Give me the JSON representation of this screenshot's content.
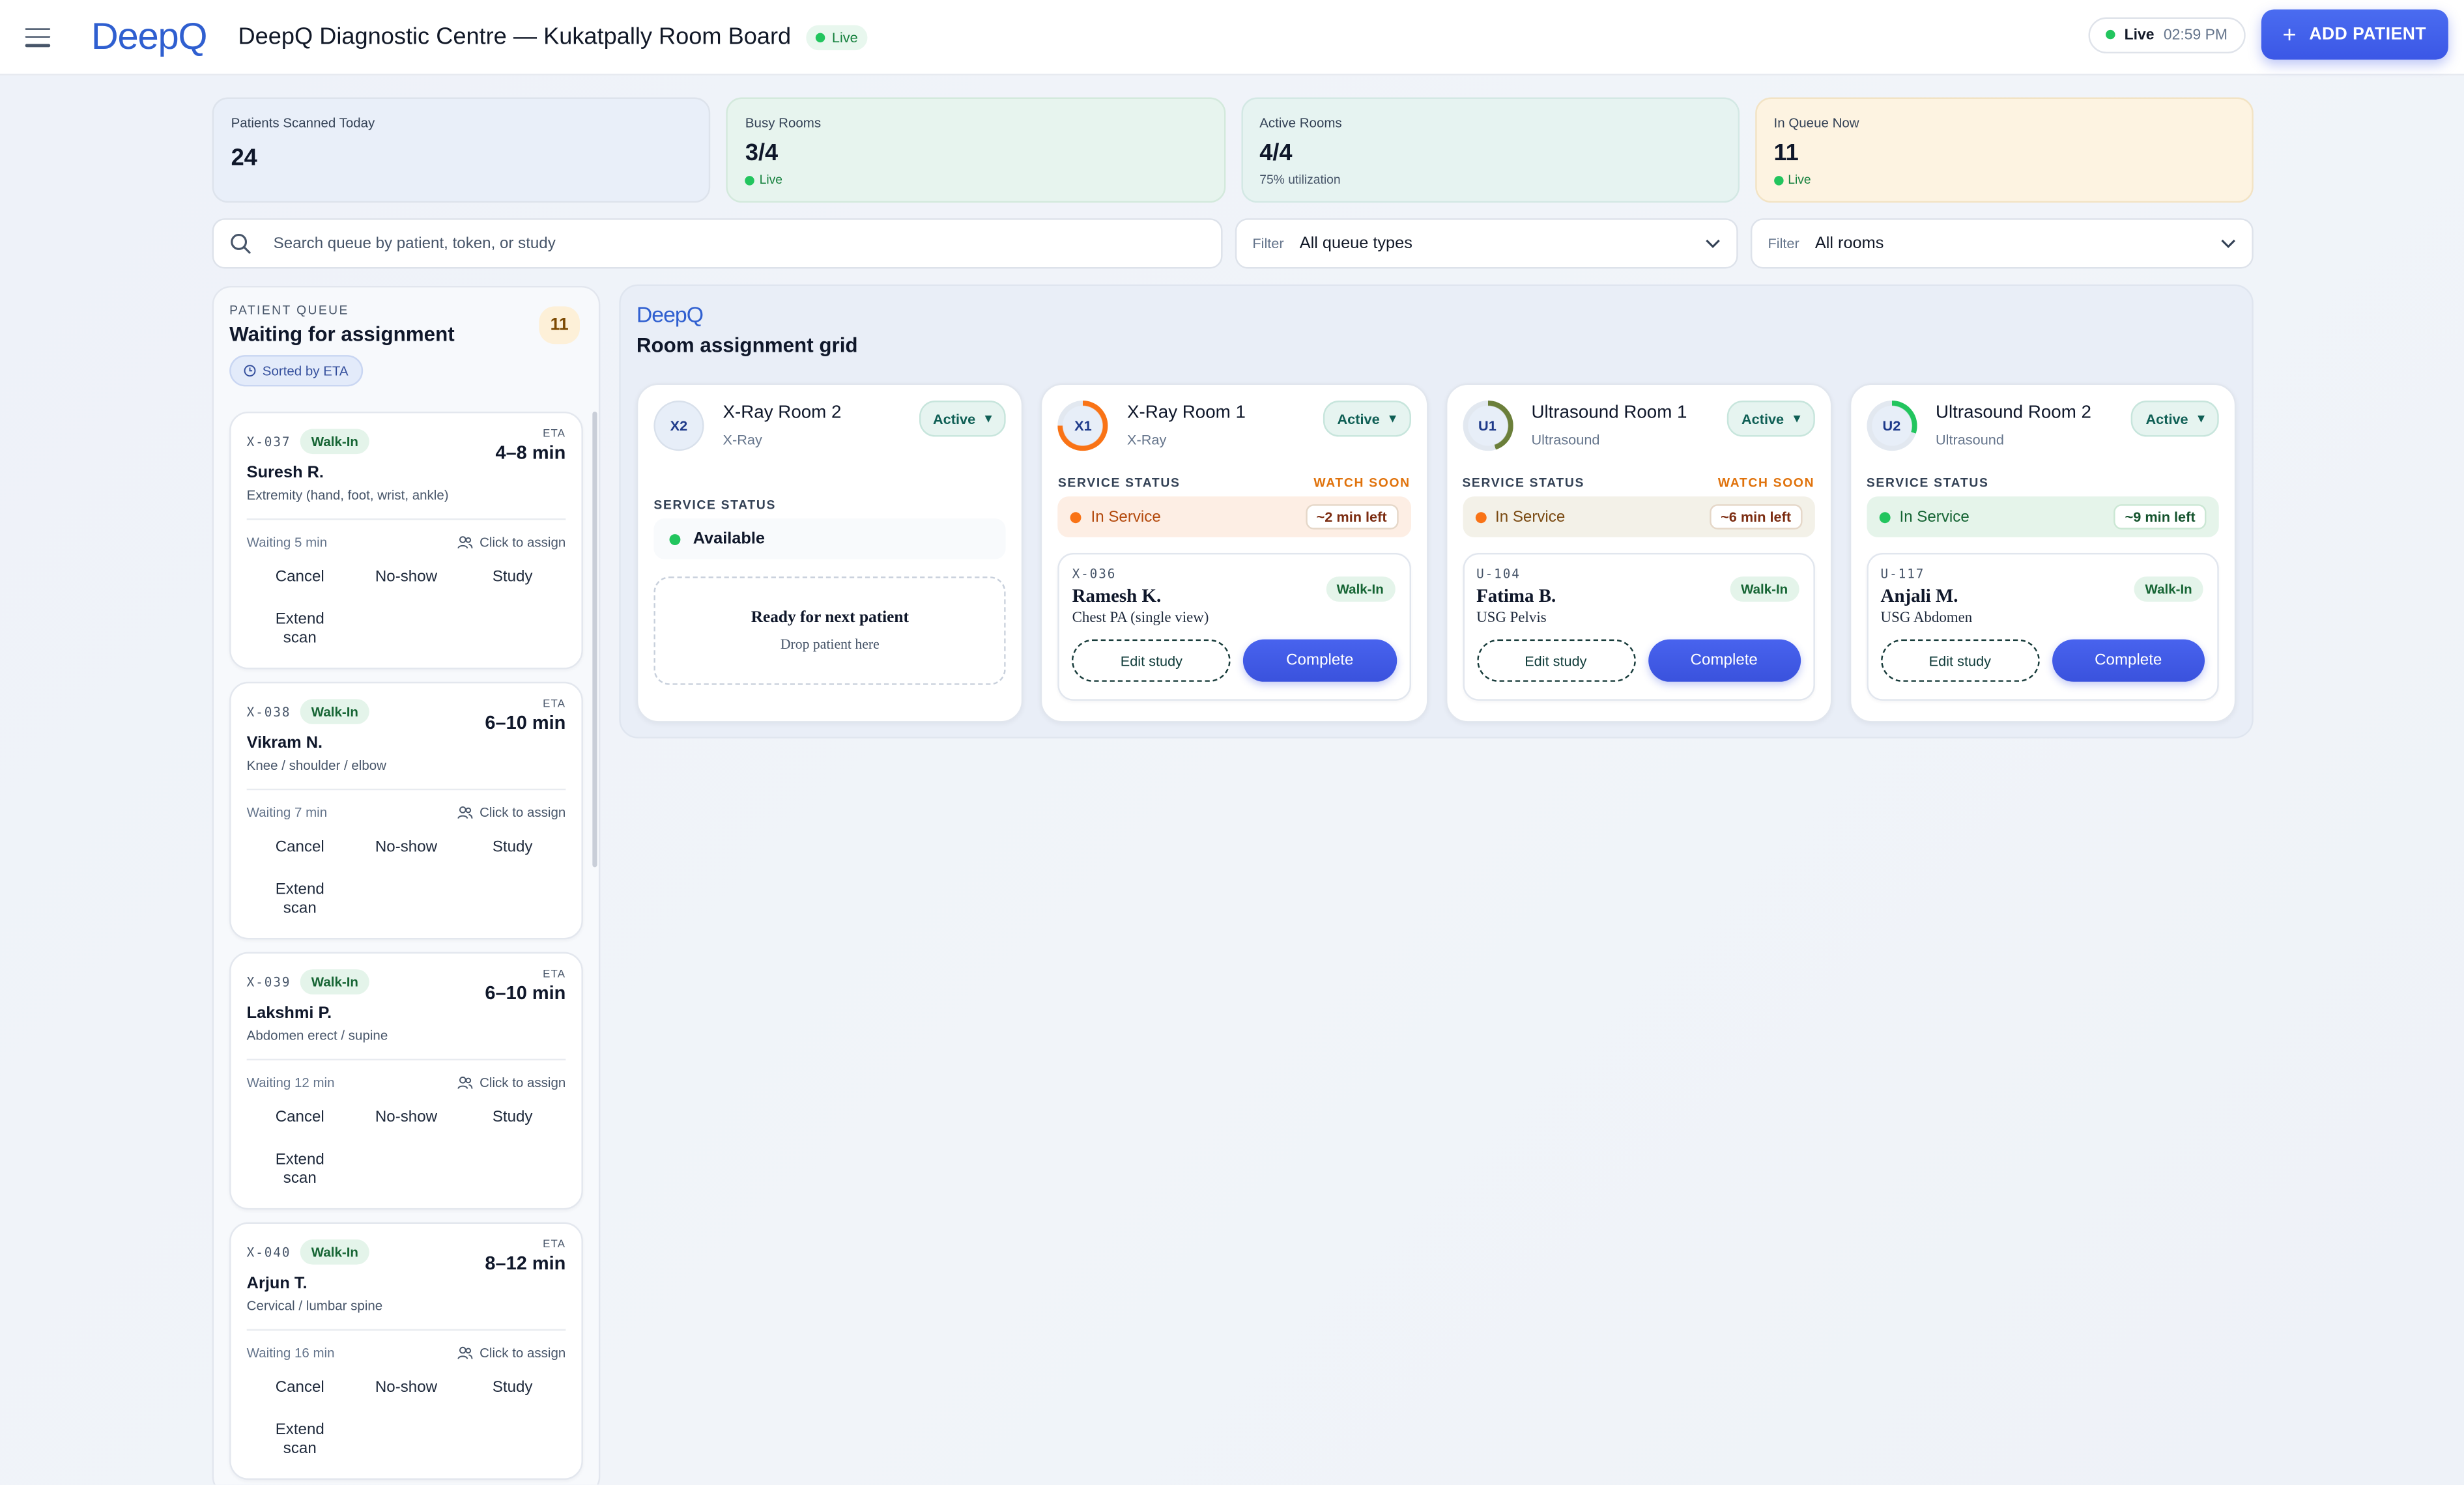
{
  "header": {
    "logo": "DeepQ",
    "title": "DeepQ Diagnostic Centre — Kukatpally Room Board",
    "live_pill": "Live",
    "clock_live": "Live",
    "clock_time": "02:59 PM",
    "add_button": "ADD PATIENT"
  },
  "stats": [
    {
      "label": "Patients Scanned Today",
      "value": "24",
      "sub": ""
    },
    {
      "label": "Busy Rooms",
      "value": "3/4",
      "sub": "Live"
    },
    {
      "label": "Active Rooms",
      "value": "4/4",
      "sub": "75% utilization"
    },
    {
      "label": "In Queue Now",
      "value": "11",
      "sub": "Live"
    }
  ],
  "search": {
    "placeholder": "Search queue by patient, token, or study"
  },
  "filters": [
    {
      "label": "Filter",
      "value": "All queue types"
    },
    {
      "label": "Filter",
      "value": "All rooms"
    }
  ],
  "queue": {
    "kicker": "PATIENT QUEUE",
    "title": "Waiting for assignment",
    "count": "11",
    "sorted": "Sorted by ETA",
    "eta_label": "ETA",
    "assign_label": "Click to assign",
    "actions": {
      "cancel": "Cancel",
      "noshow": "No-show",
      "study": "Study",
      "extend": "Extend scan"
    },
    "items": [
      {
        "token": "X-037",
        "type": "Walk-In",
        "eta": "4–8 min",
        "name": "Suresh R.",
        "study": "Extremity (hand, foot, wrist, ankle)",
        "waiting": "Waiting 5 min"
      },
      {
        "token": "X-038",
        "type": "Walk-In",
        "eta": "6–10 min",
        "name": "Vikram N.",
        "study": "Knee / shoulder / elbow",
        "waiting": "Waiting 7 min"
      },
      {
        "token": "X-039",
        "type": "Walk-In",
        "eta": "6–10 min",
        "name": "Lakshmi P.",
        "study": "Abdomen erect / supine",
        "waiting": "Waiting 12 min"
      },
      {
        "token": "X-040",
        "type": "Walk-In",
        "eta": "8–12 min",
        "name": "Arjun T.",
        "study": "Cervical / lumbar spine",
        "waiting": "Waiting 16 min"
      }
    ]
  },
  "grid": {
    "logo": "DeepQ",
    "title": "Room assignment grid",
    "service_status_label": "SERVICE STATUS",
    "rooms": [
      {
        "code": "X2",
        "name": "X-Ray Room 2",
        "type": "X-Ray",
        "status": "Active",
        "service": "Available",
        "watch": "",
        "time_left": "",
        "ready": "Ready for next patient",
        "drop": "Drop patient here",
        "ring_color": "#cbd5e1",
        "ring_pct": 0
      },
      {
        "code": "X1",
        "name": "X-Ray Room 1",
        "type": "X-Ray",
        "status": "Active",
        "service": "In Service",
        "watch": "WATCH SOON",
        "time_left": "~2 min left",
        "patient": {
          "token": "X-036",
          "name": "Ramesh K.",
          "study": "Chest PA (single view)",
          "type": "Walk-In"
        },
        "ring_color": "#f97316",
        "ring_pct": 0.75
      },
      {
        "code": "U1",
        "name": "Ultrasound Room 1",
        "type": "Ultrasound",
        "status": "Active",
        "service": "In Service",
        "watch": "WATCH SOON",
        "time_left": "~6 min left",
        "patient": {
          "token": "U-104",
          "name": "Fatima B.",
          "study": "USG Pelvis",
          "type": "Walk-In"
        },
        "ring_color": "#6b7f3a",
        "ring_pct": 0.45
      },
      {
        "code": "U2",
        "name": "Ultrasound Room 2",
        "type": "Ultrasound",
        "status": "Active",
        "service": "In Service",
        "watch": "",
        "time_left": "~9 min left",
        "patient": {
          "token": "U-117",
          "name": "Anjali M.",
          "study": "USG Abdomen",
          "type": "Walk-In"
        },
        "ring_color": "#22c55e",
        "ring_pct": 0.3
      }
    ],
    "edit_label": "Edit study",
    "complete_label": "Complete"
  },
  "colors": {
    "accent": "#3b57e6",
    "live": "#22c55e",
    "warning": "#e0720b"
  }
}
